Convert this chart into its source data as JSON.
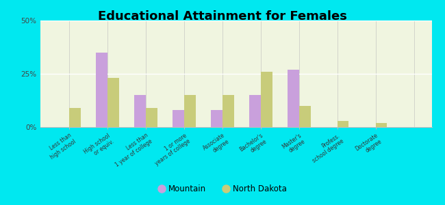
{
  "title": "Educational Attainment for Females",
  "categories": [
    "Less than\nhigh school",
    "High school\nor equiv.",
    "Less than\n1 year of college",
    "1 or more\nyears of college",
    "Associate\ndegree",
    "Bachelor's\ndegree",
    "Master's\ndegree",
    "Profess.\nschool degree",
    "Doctorate\ndegree"
  ],
  "mountain_values": [
    0.0,
    35.0,
    15.0,
    8.0,
    8.0,
    15.0,
    27.0,
    0.0,
    0.0
  ],
  "nd_values": [
    9.0,
    23.0,
    9.0,
    15.0,
    15.0,
    26.0,
    10.0,
    3.0,
    2.0
  ],
  "mountain_color": "#c9a0dc",
  "nd_color": "#c8cc7a",
  "background_outer": "#00e8f0",
  "background_inner": "#f0f5e0",
  "ylim": [
    0,
    50
  ],
  "yticks": [
    0,
    25,
    50
  ],
  "ytick_labels": [
    "0%",
    "25%",
    "50%"
  ],
  "title_fontsize": 13,
  "legend_mountain": "Mountain",
  "legend_nd": "North Dakota",
  "bar_width": 0.3
}
